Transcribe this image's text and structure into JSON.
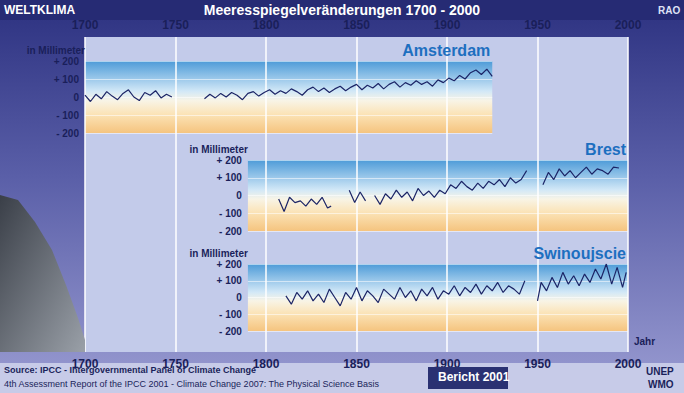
{
  "chart_data": {
    "type": "line",
    "title": "Meeresspiegelveränderungen 1700 - 2000",
    "annotations": [
      "WELTKLIMA",
      "RAO",
      "Source: IPCC - Intergovernmental Panel of Climate Change",
      "4th Assessment Report of the IPCC 2001 - Climate Change 2007: The Physical Science Basis",
      "Bericht 2001",
      "UNEP",
      "WMO"
    ],
    "xlabel": "Jahr",
    "xlim": [
      1700,
      2000
    ],
    "xticks": [
      1700,
      1750,
      1800,
      1850,
      1900,
      1950,
      2000
    ],
    "ylabel": "in Millimeter",
    "ylim": [
      -200,
      200
    ],
    "yticks": [
      {
        "value": -200,
        "label": "- 200"
      },
      {
        "value": -100,
        "label": "- 100"
      },
      0,
      {
        "value": 100,
        "label": "+ 100"
      },
      {
        "value": 200,
        "label": "+ 200"
      }
    ],
    "grid": true,
    "series": [
      {
        "name": "Amsterdam",
        "color": "#1b2466",
        "xlim": [
          1700,
          1925
        ],
        "x": [
          1700,
          1703,
          1706,
          1709,
          1712,
          1715,
          1718,
          1721,
          1724,
          1727,
          1730,
          1733,
          1736,
          1739,
          1742,
          1745,
          1748,
          1757,
          1766,
          1769,
          1772,
          1775,
          1778,
          1781,
          1784,
          1787,
          1790,
          1793,
          1796,
          1799,
          1802,
          1805,
          1808,
          1811,
          1814,
          1817,
          1820,
          1823,
          1826,
          1829,
          1832,
          1835,
          1838,
          1841,
          1844,
          1847,
          1850,
          1853,
          1856,
          1859,
          1862,
          1865,
          1868,
          1871,
          1874,
          1877,
          1880,
          1883,
          1886,
          1889,
          1892,
          1895,
          1898,
          1901,
          1904,
          1907,
          1910,
          1913,
          1916,
          1919,
          1922,
          1925
        ],
        "values": [
          10,
          -25,
          15,
          -10,
          30,
          5,
          -15,
          20,
          40,
          0,
          -20,
          25,
          10,
          35,
          -5,
          15,
          0,
          null,
          -10,
          15,
          -5,
          20,
          0,
          25,
          10,
          -15,
          20,
          30,
          5,
          25,
          40,
          15,
          35,
          20,
          45,
          30,
          10,
          40,
          55,
          30,
          50,
          25,
          45,
          60,
          35,
          55,
          70,
          40,
          65,
          50,
          75,
          45,
          70,
          85,
          55,
          80,
          65,
          90,
          70,
          85,
          60,
          95,
          80,
          105,
          90,
          120,
          100,
          135,
          150,
          125,
          155,
          115
        ]
      },
      {
        "name": "Brest",
        "color": "#1b2466",
        "xlim": [
          1790,
          2000
        ],
        "x": [
          1807,
          1810,
          1813,
          1816,
          1819,
          1822,
          1825,
          1828,
          1831,
          1834,
          1836,
          1840,
          1846,
          1849,
          1852,
          1855,
          1858,
          1860,
          1863,
          1866,
          1869,
          1872,
          1875,
          1878,
          1881,
          1884,
          1887,
          1890,
          1893,
          1896,
          1899,
          1902,
          1905,
          1908,
          1911,
          1914,
          1917,
          1920,
          1923,
          1926,
          1929,
          1932,
          1935,
          1938,
          1941,
          1944,
          1948,
          1953,
          1956,
          1959,
          1962,
          1965,
          1968,
          1971,
          1974,
          1977,
          1980,
          1983,
          1986,
          1989,
          1992,
          1995
        ],
        "values": [
          -20,
          -90,
          -10,
          -40,
          -30,
          -60,
          -20,
          -50,
          -10,
          -70,
          -60,
          null,
          30,
          -40,
          20,
          -30,
          null,
          0,
          -50,
          10,
          -20,
          30,
          -10,
          20,
          -30,
          40,
          0,
          25,
          -10,
          30,
          10,
          60,
          40,
          80,
          50,
          30,
          70,
          40,
          80,
          60,
          90,
          50,
          100,
          70,
          90,
          140,
          null,
          60,
          130,
          90,
          150,
          110,
          140,
          100,
          130,
          160,
          120,
          150,
          140,
          120,
          160,
          155
        ]
      },
      {
        "name": "Swinoujscie",
        "color": "#1b2466",
        "xlim": [
          1790,
          2000
        ],
        "x": [
          1811,
          1814,
          1817,
          1820,
          1823,
          1826,
          1829,
          1832,
          1835,
          1838,
          1841,
          1844,
          1847,
          1850,
          1853,
          1856,
          1859,
          1862,
          1865,
          1868,
          1871,
          1874,
          1877,
          1880,
          1883,
          1886,
          1889,
          1892,
          1895,
          1898,
          1901,
          1904,
          1907,
          1910,
          1913,
          1916,
          1919,
          1922,
          1925,
          1928,
          1931,
          1934,
          1937,
          1940,
          1943,
          1946,
          1950,
          1952,
          1955,
          1958,
          1961,
          1964,
          1967,
          1970,
          1973,
          1976,
          1979,
          1982,
          1985,
          1988,
          1991,
          1994,
          1997,
          1999
        ],
        "values": [
          10,
          -40,
          30,
          -10,
          40,
          -20,
          20,
          -30,
          50,
          0,
          -50,
          30,
          -10,
          60,
          -20,
          40,
          10,
          -30,
          50,
          20,
          -10,
          60,
          0,
          40,
          -20,
          50,
          10,
          60,
          -10,
          40,
          20,
          70,
          10,
          60,
          30,
          80,
          20,
          70,
          40,
          90,
          30,
          70,
          50,
          20,
          100,
          null,
          -20,
          90,
          40,
          120,
          60,
          150,
          80,
          130,
          70,
          140,
          90,
          170,
          110,
          200,
          80,
          180,
          60,
          150
        ]
      }
    ]
  }
}
